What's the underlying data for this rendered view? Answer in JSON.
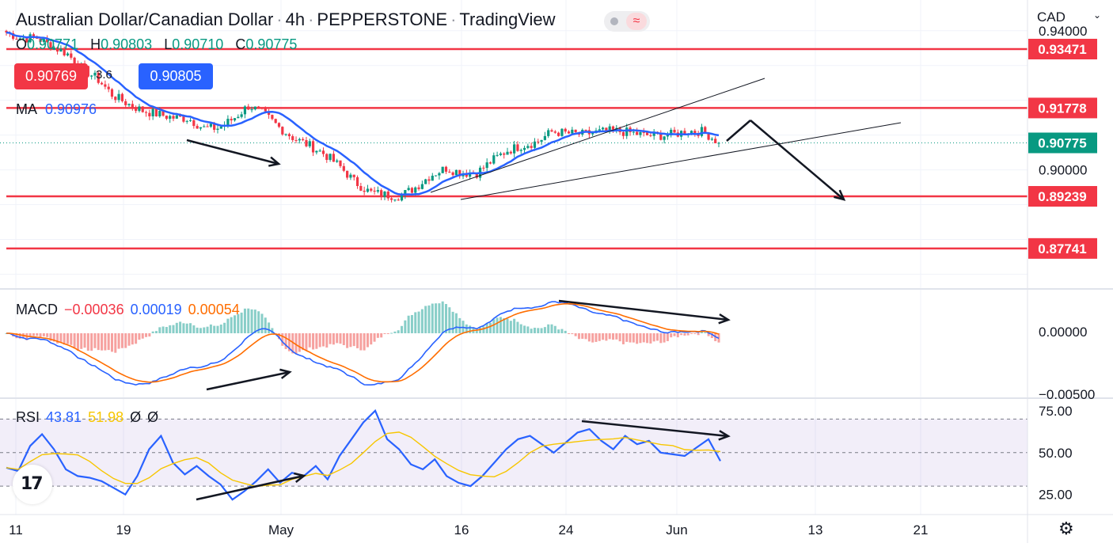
{
  "header": {
    "symbol": "Australian Dollar/Canadian Dollar",
    "interval": "4h",
    "exchange": "PEPPERSTONE",
    "platform": "TradingView"
  },
  "ohlc": {
    "open_label": "O",
    "open": "0.90771",
    "high_label": "H",
    "high": "0.90803",
    "low_label": "L",
    "low": "0.90710",
    "close_label": "C",
    "close": "0.90775"
  },
  "trade": {
    "sell": "0.90769",
    "spread": "3.6",
    "buy": "0.90805"
  },
  "ma": {
    "label": "MA",
    "value": "0.90976"
  },
  "macd": {
    "label": "MACD",
    "hist": "−0.00036",
    "macd": "0.00019",
    "signal": "0.00054"
  },
  "rsi": {
    "label": "RSI",
    "value": "43.81",
    "ma": "51.98",
    "extra1": "Ø",
    "extra2": "Ø"
  },
  "currency": "CAD",
  "colors": {
    "up": "#089981",
    "down": "#f23645",
    "ma": "#2962ff",
    "signal": "#ff6d00",
    "rsi_ma": "#f7c600",
    "level": "#f23645"
  },
  "icons": {
    "logo": "tradingview-logo-icon",
    "settings": "gear-icon",
    "dropdown": "chevron-down-icon"
  },
  "chart_data": [
    {
      "type": "candlestick",
      "title": "Australian Dollar/Canadian Dollar · 4h · PEPPERSTONE",
      "y_axis_ticks": [
        "0.94000",
        "0.90000"
      ],
      "ylim": [
        0.866,
        0.947
      ],
      "x_tick_labels": [
        "11",
        "19",
        "May",
        "16",
        "24",
        "Jun",
        "13",
        "21"
      ],
      "last_price": "0.90775",
      "horizontal_levels": [
        "0.93471",
        "0.91778",
        "0.89239",
        "0.87741"
      ],
      "moving_average": {
        "name": "MA",
        "last": 0.90976
      },
      "closes_approx": [
        0.9395,
        0.9378,
        0.938,
        0.9355,
        0.9335,
        0.929,
        0.9262,
        0.9215,
        0.919,
        0.917,
        0.916,
        0.915,
        0.9148,
        0.912,
        0.912,
        0.9148,
        0.9185,
        0.916,
        0.9122,
        0.909,
        0.907,
        0.9045,
        0.901,
        0.8965,
        0.8935,
        0.8928,
        0.8925,
        0.895,
        0.8985,
        0.9005,
        0.8992,
        0.899,
        0.9025,
        0.9055,
        0.907,
        0.908,
        0.911,
        0.9105,
        0.9102,
        0.9108,
        0.9112,
        0.9108,
        0.91,
        0.9098,
        0.9102,
        0.9112,
        0.911,
        0.9078
      ]
    },
    {
      "type": "line",
      "title": "MACD",
      "y_axis_ticks": [
        "0.00000",
        "−0.00500"
      ],
      "series": [
        {
          "name": "MACD",
          "last": 0.00019
        },
        {
          "name": "Signal",
          "last": 0.00054
        },
        {
          "name": "Histogram",
          "last": -0.00036
        }
      ]
    },
    {
      "type": "line",
      "title": "RSI",
      "y_axis_ticks": [
        "75.00",
        "50.00",
        "25.00"
      ],
      "ylim": [
        14,
        82
      ],
      "bands": [
        70,
        50,
        30
      ],
      "series": [
        {
          "name": "RSI",
          "last": 43.81,
          "values": [
            41,
            39,
            54,
            61,
            52,
            40,
            36,
            35,
            33,
            29,
            25,
            36,
            52,
            60,
            44,
            37,
            42,
            36,
            31,
            22,
            27,
            33,
            40,
            32,
            38,
            36,
            42,
            34,
            48,
            58,
            68,
            75,
            58,
            52,
            43,
            40,
            46,
            36,
            32,
            30,
            36,
            44,
            52,
            58,
            60,
            55,
            50,
            56,
            62,
            64,
            57,
            52,
            60,
            55,
            57,
            50,
            49,
            48,
            53,
            58,
            45
          ]
        },
        {
          "name": "RSI MA",
          "last": 51.98
        }
      ]
    }
  ]
}
